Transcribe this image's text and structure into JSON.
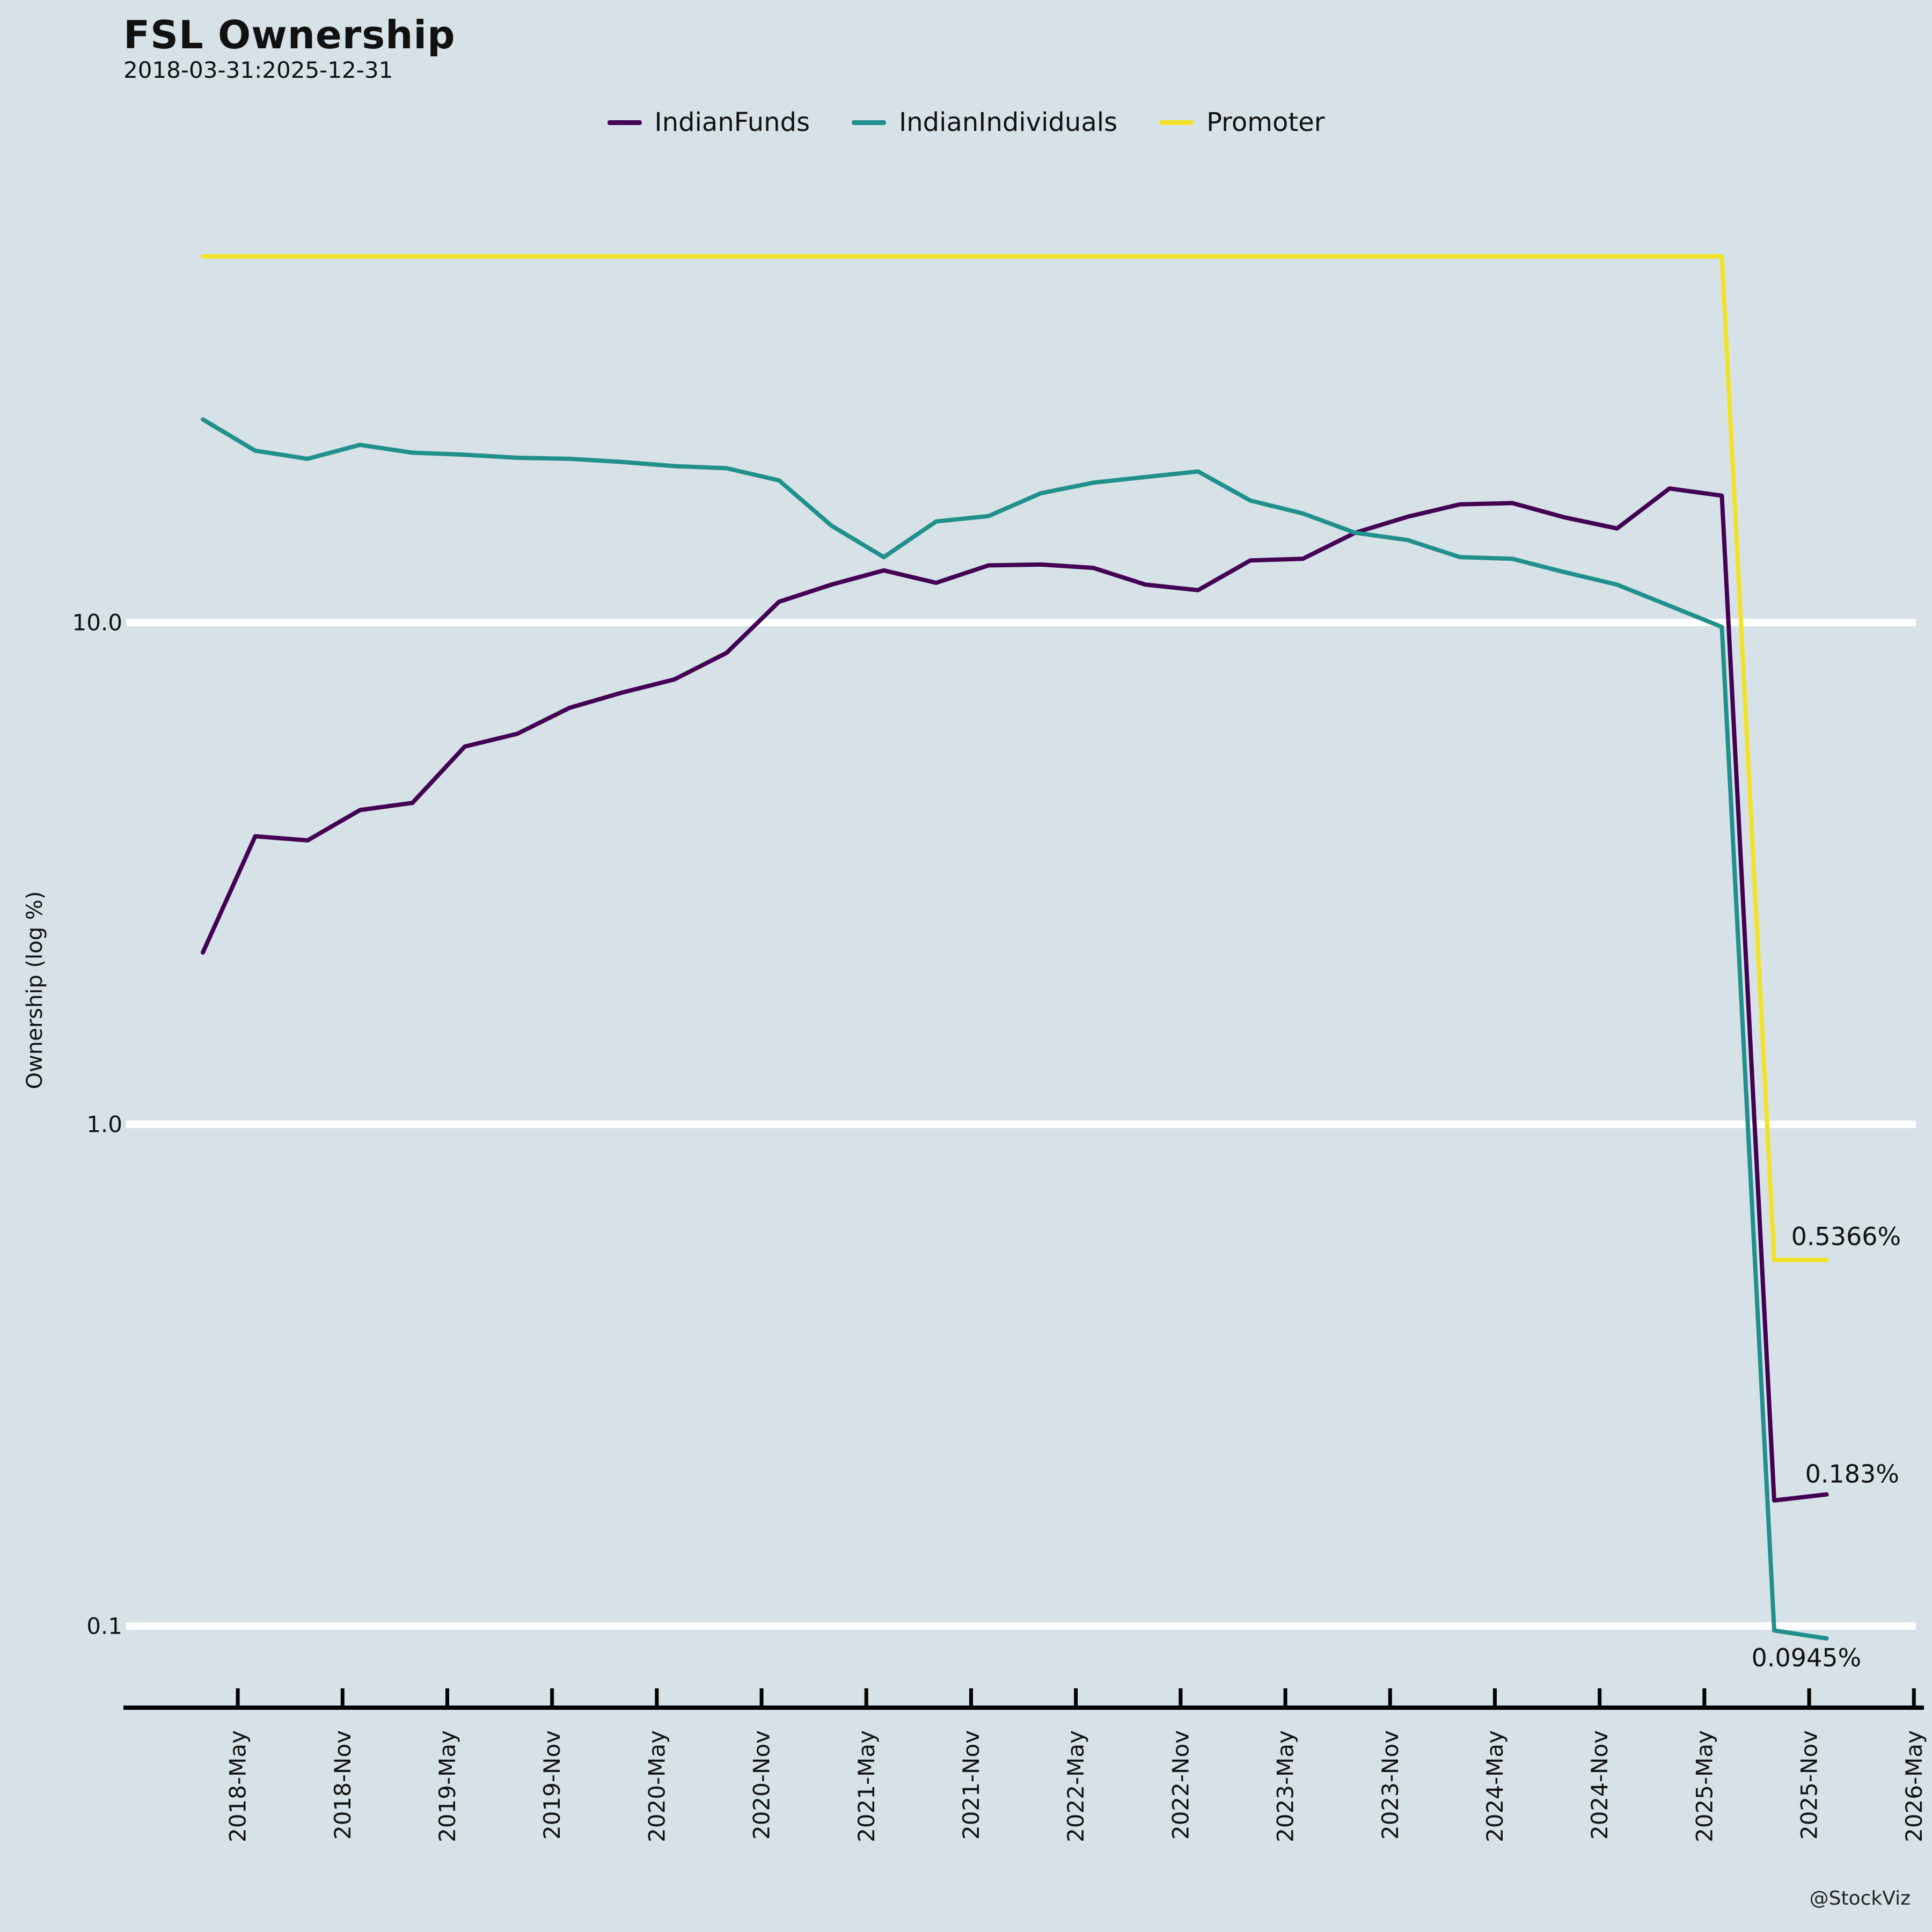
{
  "header": {
    "title": "FSL Ownership",
    "subtitle": "2018-03-31:2025-12-31"
  },
  "watermark": "@StockViz",
  "colors": {
    "background": "#d6e2e8",
    "grid": "#ffffff",
    "axis": "#000000",
    "indianfunds": "#440154",
    "indianindividuals": "#21908c",
    "promoter": "#f2e225"
  },
  "chart_data": {
    "type": "line",
    "title": "FSL Ownership",
    "subtitle": "2018-03-31:2025-12-31",
    "ylabel": "Ownership (log %)",
    "yscale": "log",
    "ylim": [
      0.07,
      60
    ],
    "grid": "horizontal-white-decades",
    "legend_position": "top-center",
    "x": [
      "2018-03-31",
      "2018-06-30",
      "2018-09-30",
      "2018-12-31",
      "2019-03-31",
      "2019-06-30",
      "2019-09-30",
      "2019-12-31",
      "2020-03-31",
      "2020-06-30",
      "2020-09-30",
      "2020-12-31",
      "2021-03-31",
      "2021-06-30",
      "2021-09-30",
      "2021-12-31",
      "2022-03-31",
      "2022-06-30",
      "2022-09-30",
      "2022-12-31",
      "2023-03-31",
      "2023-06-30",
      "2023-09-30",
      "2023-12-31",
      "2024-03-31",
      "2024-06-30",
      "2024-09-30",
      "2024-12-31",
      "2025-03-31",
      "2025-06-30",
      "2025-09-30",
      "2025-12-31"
    ],
    "xtick_labels": [
      "2018-May",
      "2018-Nov",
      "2019-May",
      "2019-Nov",
      "2020-May",
      "2020-Nov",
      "2021-May",
      "2021-Nov",
      "2022-May",
      "2022-Nov",
      "2023-May",
      "2023-Nov",
      "2024-May",
      "2024-Nov",
      "2025-May",
      "2025-Nov",
      "2026-May"
    ],
    "yticks": [
      {
        "label": "10.0",
        "value": 10.0
      },
      {
        "label": "1.0",
        "value": 1.0
      },
      {
        "label": "0.1",
        "value": 0.1
      }
    ],
    "series": [
      {
        "name": "IndianFunds",
        "color": "#440154",
        "values": [
          2.2,
          3.75,
          3.68,
          4.23,
          4.37,
          5.66,
          6.0,
          6.76,
          7.25,
          7.7,
          8.7,
          11.0,
          11.9,
          12.7,
          12.0,
          13.0,
          13.05,
          12.85,
          11.9,
          11.6,
          13.3,
          13.4,
          15.1,
          16.25,
          17.2,
          17.3,
          16.2,
          15.4,
          18.5,
          17.9,
          0.178,
          0.183
        ]
      },
      {
        "name": "IndianIndividuals",
        "color": "#21908c",
        "values": [
          25.4,
          22.0,
          21.2,
          22.6,
          21.8,
          21.6,
          21.3,
          21.2,
          20.9,
          20.5,
          20.3,
          19.2,
          15.6,
          13.5,
          15.9,
          16.3,
          18.1,
          19.0,
          19.5,
          20.0,
          17.5,
          16.5,
          15.1,
          14.6,
          13.5,
          13.4,
          12.6,
          11.9,
          10.8,
          9.8,
          0.098,
          0.0945
        ]
      },
      {
        "name": "Promoter",
        "color": "#f2e225",
        "values": [
          53.66,
          53.66,
          53.66,
          53.66,
          53.66,
          53.66,
          53.66,
          53.66,
          53.66,
          53.66,
          53.66,
          53.66,
          53.66,
          53.66,
          53.66,
          53.66,
          53.66,
          53.66,
          53.66,
          53.66,
          53.66,
          53.66,
          53.66,
          53.66,
          53.66,
          53.66,
          53.66,
          53.66,
          53.66,
          53.66,
          0.5366,
          0.5366
        ]
      }
    ],
    "annotations": [
      {
        "label": "0.5366%",
        "series": "Promoter",
        "value": 0.5366
      },
      {
        "label": "0.183%",
        "series": "IndianFunds",
        "value": 0.183
      },
      {
        "label": "0.0945%",
        "series": "IndianIndividuals",
        "value": 0.0945
      }
    ]
  }
}
